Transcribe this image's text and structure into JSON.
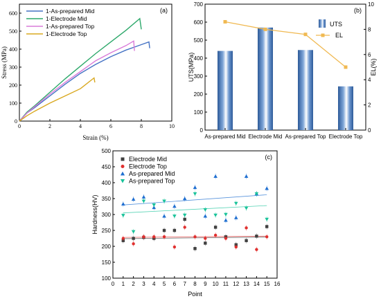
{
  "chart_data": [
    {
      "panel": "(a)",
      "type": "line",
      "xlabel": "Strain (%)",
      "ylabel": "Stress (MPa)",
      "xlim": [
        0,
        10
      ],
      "ylim": [
        0,
        650
      ],
      "xticks": [
        0,
        2,
        4,
        6,
        8,
        10
      ],
      "yticks": [
        0,
        100,
        200,
        300,
        400,
        500,
        600
      ],
      "legend": "top-left",
      "series": [
        {
          "name": "1-As-prepared Mid",
          "color": "#4472c4",
          "x": [
            0,
            0.5,
            1,
            2,
            3,
            4,
            5,
            6,
            7,
            8,
            8.5,
            8.55
          ],
          "y": [
            0,
            45,
            75,
            140,
            205,
            265,
            315,
            358,
            395,
            425,
            440,
            405
          ]
        },
        {
          "name": "1-Electrode Mid",
          "color": "#2ca86a",
          "x": [
            0,
            0.5,
            1,
            2,
            3,
            4,
            5,
            6,
            7,
            7.9,
            8.0
          ],
          "y": [
            0,
            50,
            85,
            160,
            235,
            305,
            375,
            440,
            505,
            570,
            510
          ]
        },
        {
          "name": "1-As-prepared Top",
          "color": "#d97bd9",
          "x": [
            0,
            0.5,
            1,
            2,
            3,
            4,
            5,
            6,
            7,
            7.5,
            7.55
          ],
          "y": [
            0,
            45,
            80,
            150,
            215,
            275,
            335,
            380,
            420,
            445,
            390
          ]
        },
        {
          "name": "1-Electrode Top",
          "color": "#d9a81f",
          "x": [
            0,
            0.5,
            1,
            2,
            3,
            4,
            4.9,
            4.95
          ],
          "y": [
            0,
            30,
            55,
            100,
            140,
            180,
            240,
            215
          ]
        }
      ]
    },
    {
      "panel": "(b)",
      "type": "bar",
      "categories": [
        "As-prepared Mid",
        "Electrode Mid",
        "As-prepared Top",
        "Electrode Top"
      ],
      "ylabel": "UTS(MPa)",
      "ylim": [
        0,
        700
      ],
      "yticks": [
        0,
        100,
        200,
        300,
        400,
        500,
        600,
        700
      ],
      "y2label": "EL(%)",
      "y2lim": [
        0,
        10
      ],
      "y2ticks": [
        0,
        2,
        4,
        6,
        8,
        10
      ],
      "legend": "top-right",
      "series": [
        {
          "name": "UTS",
          "axis": "left",
          "color": "#3b6fb5",
          "values": [
            440,
            570,
            445,
            243
          ]
        },
        {
          "name": "EL",
          "axis": "right",
          "color": "#f0b952",
          "values": [
            8.6,
            8.0,
            7.6,
            5.0
          ]
        }
      ]
    },
    {
      "panel": "(c)",
      "type": "scatter",
      "xlabel": "Point",
      "ylabel": "Hardness(HV)",
      "xlim": [
        0,
        16
      ],
      "ylim": [
        100,
        500
      ],
      "xticks": [
        0,
        1,
        2,
        3,
        4,
        5,
        6,
        7,
        8,
        9,
        10,
        11,
        12,
        13,
        14,
        15,
        16
      ],
      "yticks": [
        100,
        150,
        200,
        250,
        300,
        350,
        400,
        450,
        500
      ],
      "legend": "top-left",
      "series": [
        {
          "name": "Electrode Mid",
          "marker": "square",
          "color": "#404040",
          "x": [
            1,
            2,
            3,
            4,
            5,
            6,
            7,
            8,
            9,
            10,
            11,
            12,
            13,
            14,
            15
          ],
          "y": [
            218,
            225,
            228,
            225,
            250,
            250,
            285,
            193,
            210,
            260,
            230,
            205,
            218,
            232,
            262
          ],
          "fit": [
            224,
            229
          ]
        },
        {
          "name": "Electrode Top",
          "marker": "circle",
          "color": "#e0302f",
          "x": [
            1,
            2,
            3,
            4,
            5,
            6,
            7,
            8,
            9,
            10,
            11,
            12,
            13,
            14,
            15
          ],
          "y": [
            225,
            208,
            230,
            230,
            230,
            198,
            260,
            230,
            225,
            235,
            225,
            198,
            258,
            190,
            230
          ],
          "fit": [
            228,
            232
          ]
        },
        {
          "name": "As-prepared Mid",
          "marker": "triangle-up",
          "color": "#1f6fd1",
          "x": [
            1,
            2,
            3,
            4,
            5,
            6,
            7,
            8,
            9,
            10,
            11,
            12,
            13,
            14,
            15
          ],
          "y": [
            333,
            348,
            355,
            322,
            295,
            326,
            350,
            385,
            295,
            420,
            282,
            290,
            420,
            365,
            382
          ],
          "fit": [
            330,
            362
          ]
        },
        {
          "name": "As-prepared Top",
          "marker": "triangle-down",
          "color": "#19c39a",
          "x": [
            1,
            2,
            3,
            4,
            5,
            6,
            7,
            8,
            9,
            10,
            11,
            12,
            13,
            14,
            15
          ],
          "y": [
            297,
            246,
            342,
            330,
            342,
            295,
            298,
            365,
            315,
            298,
            300,
            335,
            320,
            365,
            285
          ],
          "fit": [
            305,
            328
          ]
        }
      ]
    }
  ]
}
